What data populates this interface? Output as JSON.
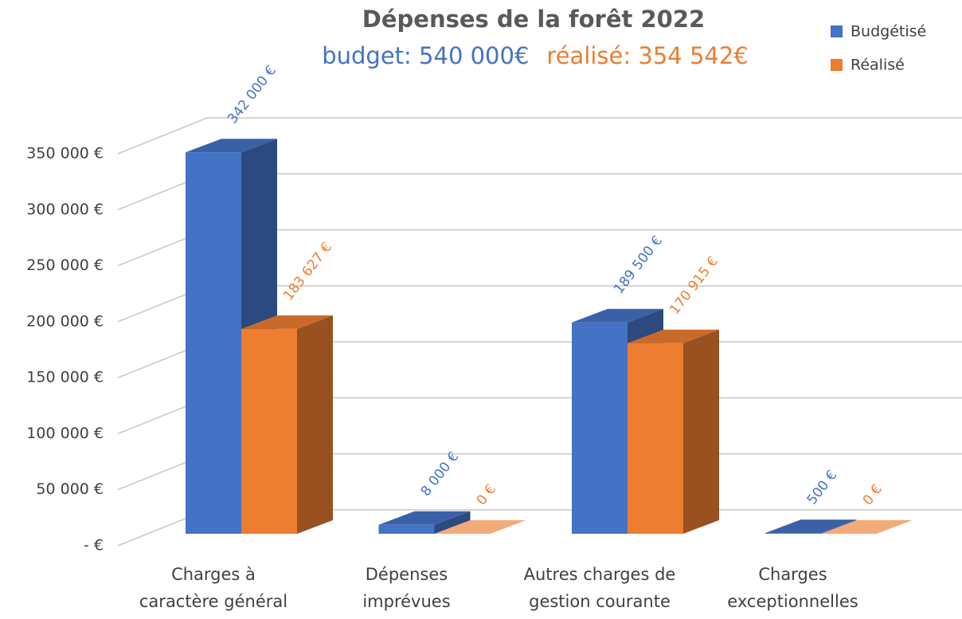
{
  "chart_data": {
    "type": "bar3d",
    "title": "Dépenses de la forêt 2022",
    "subtitle": [
      {
        "text": "budget: 540 000€",
        "color": "#4472c4"
      },
      {
        "text": "réalisé: 354 542€",
        "color": "#ed7d31"
      }
    ],
    "categories": [
      "Charges à caractère général",
      "Dépenses imprévues",
      "Autres charges de gestion courante",
      "Charges exceptionnelles"
    ],
    "series": [
      {
        "name": "Budgétisé",
        "color": "#4472c4",
        "values": [
          342000,
          8000,
          189500,
          500
        ],
        "value_labels": [
          "342 000 €",
          "8 000 €",
          "189 500 €",
          "500 €"
        ]
      },
      {
        "name": "Réalisé",
        "color": "#ed7d31",
        "values": [
          183627,
          0,
          170915,
          0
        ],
        "value_labels": [
          "183 627 €",
          "0 €",
          "170 915 €",
          "0 €"
        ]
      }
    ],
    "ylim": [
      0,
      350000
    ],
    "yticks": [
      {
        "value": 0,
        "label": "- €"
      },
      {
        "value": 50000,
        "label": "50 000 €"
      },
      {
        "value": 100000,
        "label": "100 000 €"
      },
      {
        "value": 150000,
        "label": "150 000 €"
      },
      {
        "value": 200000,
        "label": "200 000 €"
      },
      {
        "value": 250000,
        "label": "250 000 €"
      },
      {
        "value": 300000,
        "label": "300 000 €"
      },
      {
        "value": 350000,
        "label": "350 000 €"
      }
    ],
    "grid": true,
    "legend": "top-right"
  }
}
